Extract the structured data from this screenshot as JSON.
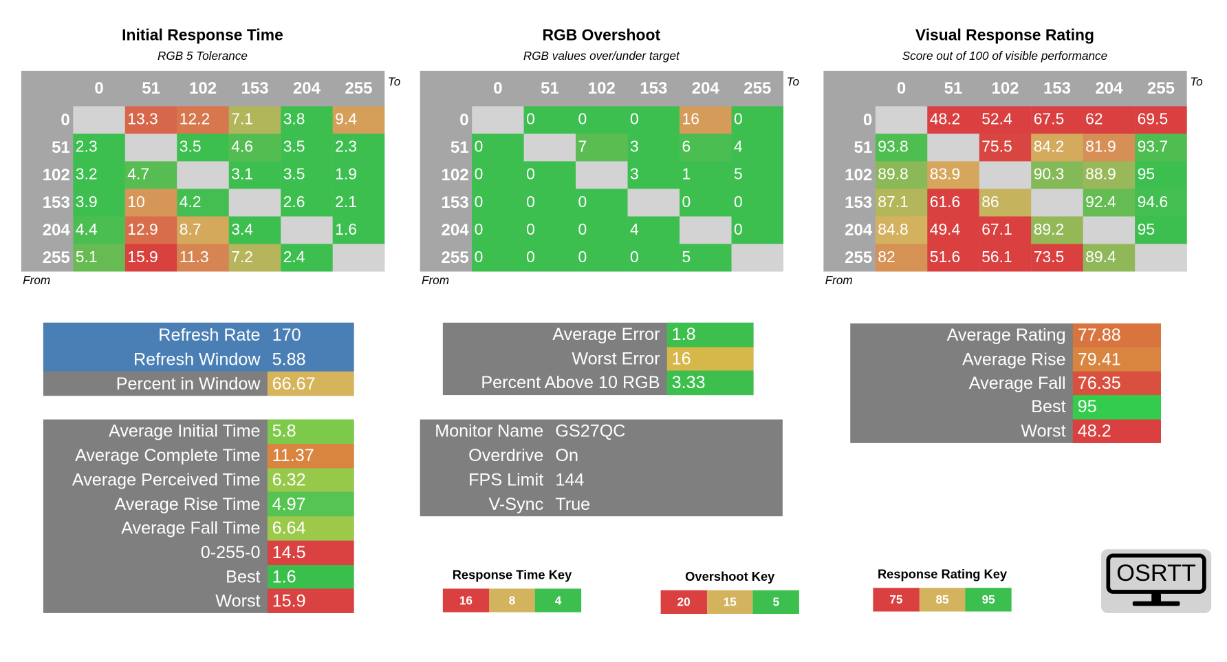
{
  "heatmaps": [
    {
      "title": "Initial Response Time",
      "subtitle": "RGB 5 Tolerance",
      "to": "To",
      "from": "From",
      "columns": [
        0,
        51,
        102,
        153,
        204,
        255
      ],
      "rows": [
        0,
        51,
        102,
        153,
        204,
        255
      ],
      "values": [
        [
          null,
          13.3,
          12.2,
          7.1,
          3.8,
          9.4
        ],
        [
          2.3,
          null,
          3.5,
          4.6,
          3.5,
          2.3
        ],
        [
          3.2,
          4.7,
          null,
          3.1,
          3.5,
          1.9
        ],
        [
          3.9,
          10,
          4.2,
          null,
          2.6,
          2.1
        ],
        [
          4.4,
          12.9,
          8.7,
          3.4,
          null,
          1.6
        ],
        [
          5.1,
          15.9,
          11.3,
          7.2,
          2.4,
          null
        ]
      ]
    },
    {
      "title": "RGB Overshoot",
      "subtitle": "RGB values over/under target",
      "to": "To",
      "from": "From",
      "columns": [
        0,
        51,
        102,
        153,
        204,
        255
      ],
      "rows": [
        0,
        51,
        102,
        153,
        204,
        255
      ],
      "values": [
        [
          null,
          0,
          0,
          0,
          16,
          0
        ],
        [
          0,
          null,
          7,
          3,
          6,
          4
        ],
        [
          0,
          0,
          null,
          3,
          1,
          5
        ],
        [
          0,
          0,
          0,
          null,
          0,
          0
        ],
        [
          0,
          0,
          0,
          4,
          null,
          0
        ],
        [
          0,
          0,
          0,
          0,
          5,
          null
        ]
      ]
    },
    {
      "title": "Visual Response Rating",
      "subtitle": "Score out of 100 of visible performance",
      "to": "To",
      "from": "From",
      "columns": [
        0,
        51,
        102,
        153,
        204,
        255
      ],
      "rows": [
        0,
        51,
        102,
        153,
        204,
        255
      ],
      "values": [
        [
          null,
          48.2,
          52.4,
          67.5,
          62,
          69.5
        ],
        [
          93.8,
          null,
          75.5,
          84.2,
          81.9,
          93.7
        ],
        [
          89.8,
          83.9,
          null,
          90.3,
          88.9,
          95
        ],
        [
          87.1,
          61.6,
          86,
          null,
          92.4,
          94.6
        ],
        [
          84.8,
          49.4,
          67.1,
          89.2,
          null,
          95
        ],
        [
          82,
          51.6,
          56.1,
          73.5,
          89.4,
          null
        ]
      ]
    }
  ],
  "keys": [
    {
      "title": "Response Time Key",
      "values": [
        16,
        8,
        4
      ],
      "colors": [
        "#d9403f",
        "#d4b35f",
        "#3cbf4f"
      ]
    },
    {
      "title": "Overshoot Key",
      "values": [
        20,
        15,
        5
      ],
      "colors": [
        "#d9403f",
        "#d4b35f",
        "#3cbf4f"
      ]
    },
    {
      "title": "Response Rating Key",
      "values": [
        75,
        85,
        95
      ],
      "colors": [
        "#d9403f",
        "#d4b35f",
        "#3cbf4f"
      ]
    }
  ],
  "summaries": [
    {
      "rows": [
        {
          "label": "Refresh Rate",
          "value": 170,
          "color": "#4a7fb5",
          "label_color": "#4a7fb5"
        },
        {
          "label": "Refresh Window",
          "value": 5.88,
          "color": "#4a7fb5",
          "label_color": "#4a7fb5"
        },
        {
          "label": "Percent in Window",
          "value": 66.67,
          "color": "#d6b45c"
        }
      ]
    },
    {
      "rows": [
        {
          "label": "Average Initial Time",
          "value": 5.8,
          "color": "#7dc94a"
        },
        {
          "label": "Average Complete Time",
          "value": 11.37,
          "color": "#d9843f"
        },
        {
          "label": "Average Perceived Time",
          "value": 6.32,
          "color": "#96c94a"
        },
        {
          "label": "Average Rise Time",
          "value": 4.97,
          "color": "#55c453"
        },
        {
          "label": "Average Fall Time",
          "value": 6.64,
          "color": "#9cc94a"
        },
        {
          "label": "0-255-0",
          "value": 14.5,
          "color": "#d94240"
        },
        {
          "label": "Best",
          "value": 1.6,
          "color": "#3bbf4c"
        },
        {
          "label": "Worst",
          "value": 15.9,
          "color": "#d94240"
        }
      ]
    },
    {
      "rows": [
        {
          "label": "Average Error",
          "value": 1.8,
          "color": "#3cbf4c"
        },
        {
          "label": "Worst Error",
          "value": 16,
          "color": "#d6b84a"
        },
        {
          "label": "Percent Above 10 RGB",
          "value": 3.33,
          "color": "#3cbf4c"
        }
      ]
    },
    {
      "rows": [
        {
          "label": "Monitor Name",
          "value": "GS27QC"
        },
        {
          "label": "Overdrive",
          "value": "On"
        },
        {
          "label": "FPS Limit",
          "value": 144
        },
        {
          "label": "V-Sync",
          "value": "True"
        }
      ]
    },
    {
      "rows": [
        {
          "label": "Average Rating",
          "value": 77.88,
          "color": "#d9743f"
        },
        {
          "label": "Average Rise",
          "value": 79.41,
          "color": "#d9843f"
        },
        {
          "label": "Average Fall",
          "value": 76.35,
          "color": "#d9503f"
        },
        {
          "label": "Best",
          "value": 95,
          "color": "#33cc4c"
        },
        {
          "label": "Worst",
          "value": 48.2,
          "color": "#d9403f"
        }
      ]
    }
  ],
  "logo": {
    "text": "OSRTT"
  }
}
